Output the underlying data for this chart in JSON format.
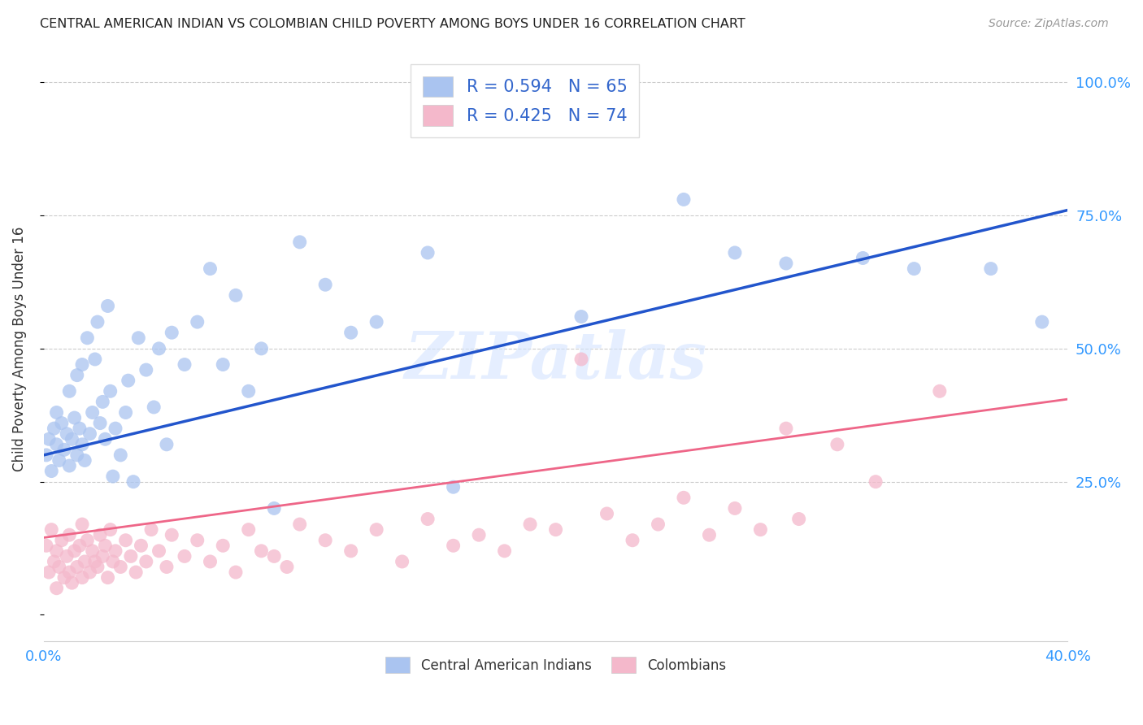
{
  "title": "CENTRAL AMERICAN INDIAN VS COLOMBIAN CHILD POVERTY AMONG BOYS UNDER 16 CORRELATION CHART",
  "source": "Source: ZipAtlas.com",
  "ylabel": "Child Poverty Among Boys Under 16",
  "xlim": [
    0.0,
    0.4
  ],
  "ylim": [
    -0.05,
    1.05
  ],
  "blue_R": 0.594,
  "blue_N": 65,
  "pink_R": 0.425,
  "pink_N": 74,
  "blue_color": "#aac4f0",
  "pink_color": "#f4b8cb",
  "blue_line_color": "#2255cc",
  "pink_line_color": "#ee6688",
  "watermark": "ZIPatlas",
  "legend_label_blue": "Central American Indians",
  "legend_label_pink": "Colombians",
  "blue_line_x0": 0.0,
  "blue_line_y0": 0.3,
  "blue_line_x1": 0.4,
  "blue_line_y1": 0.76,
  "pink_line_x0": 0.0,
  "pink_line_y0": 0.145,
  "pink_line_x1": 0.4,
  "pink_line_y1": 0.405,
  "blue_scatter_x": [
    0.001,
    0.002,
    0.003,
    0.004,
    0.005,
    0.005,
    0.006,
    0.007,
    0.008,
    0.009,
    0.01,
    0.01,
    0.011,
    0.012,
    0.013,
    0.013,
    0.014,
    0.015,
    0.015,
    0.016,
    0.017,
    0.018,
    0.019,
    0.02,
    0.021,
    0.022,
    0.023,
    0.024,
    0.025,
    0.026,
    0.027,
    0.028,
    0.03,
    0.032,
    0.033,
    0.035,
    0.037,
    0.04,
    0.043,
    0.045,
    0.048,
    0.05,
    0.055,
    0.06,
    0.065,
    0.07,
    0.075,
    0.08,
    0.085,
    0.09,
    0.1,
    0.11,
    0.12,
    0.13,
    0.15,
    0.16,
    0.19,
    0.21,
    0.25,
    0.27,
    0.29,
    0.32,
    0.34,
    0.37,
    0.39
  ],
  "blue_scatter_y": [
    0.3,
    0.33,
    0.27,
    0.35,
    0.32,
    0.38,
    0.29,
    0.36,
    0.31,
    0.34,
    0.28,
    0.42,
    0.33,
    0.37,
    0.3,
    0.45,
    0.35,
    0.32,
    0.47,
    0.29,
    0.52,
    0.34,
    0.38,
    0.48,
    0.55,
    0.36,
    0.4,
    0.33,
    0.58,
    0.42,
    0.26,
    0.35,
    0.3,
    0.38,
    0.44,
    0.25,
    0.52,
    0.46,
    0.39,
    0.5,
    0.32,
    0.53,
    0.47,
    0.55,
    0.65,
    0.47,
    0.6,
    0.42,
    0.5,
    0.2,
    0.7,
    0.62,
    0.53,
    0.55,
    0.68,
    0.24,
    0.91,
    0.56,
    0.78,
    0.68,
    0.66,
    0.67,
    0.65,
    0.65,
    0.55
  ],
  "pink_scatter_x": [
    0.001,
    0.002,
    0.003,
    0.004,
    0.005,
    0.005,
    0.006,
    0.007,
    0.008,
    0.009,
    0.01,
    0.01,
    0.011,
    0.012,
    0.013,
    0.014,
    0.015,
    0.015,
    0.016,
    0.017,
    0.018,
    0.019,
    0.02,
    0.021,
    0.022,
    0.023,
    0.024,
    0.025,
    0.026,
    0.027,
    0.028,
    0.03,
    0.032,
    0.034,
    0.036,
    0.038,
    0.04,
    0.042,
    0.045,
    0.048,
    0.05,
    0.055,
    0.06,
    0.065,
    0.07,
    0.075,
    0.08,
    0.085,
    0.09,
    0.095,
    0.1,
    0.11,
    0.12,
    0.13,
    0.14,
    0.15,
    0.16,
    0.17,
    0.18,
    0.19,
    0.2,
    0.21,
    0.22,
    0.23,
    0.24,
    0.25,
    0.26,
    0.27,
    0.28,
    0.29,
    0.295,
    0.31,
    0.325,
    0.35
  ],
  "pink_scatter_y": [
    0.13,
    0.08,
    0.16,
    0.1,
    0.05,
    0.12,
    0.09,
    0.14,
    0.07,
    0.11,
    0.08,
    0.15,
    0.06,
    0.12,
    0.09,
    0.13,
    0.07,
    0.17,
    0.1,
    0.14,
    0.08,
    0.12,
    0.1,
    0.09,
    0.15,
    0.11,
    0.13,
    0.07,
    0.16,
    0.1,
    0.12,
    0.09,
    0.14,
    0.11,
    0.08,
    0.13,
    0.1,
    0.16,
    0.12,
    0.09,
    0.15,
    0.11,
    0.14,
    0.1,
    0.13,
    0.08,
    0.16,
    0.12,
    0.11,
    0.09,
    0.17,
    0.14,
    0.12,
    0.16,
    0.1,
    0.18,
    0.13,
    0.15,
    0.12,
    0.17,
    0.16,
    0.48,
    0.19,
    0.14,
    0.17,
    0.22,
    0.15,
    0.2,
    0.16,
    0.35,
    0.18,
    0.32,
    0.25,
    0.42
  ]
}
